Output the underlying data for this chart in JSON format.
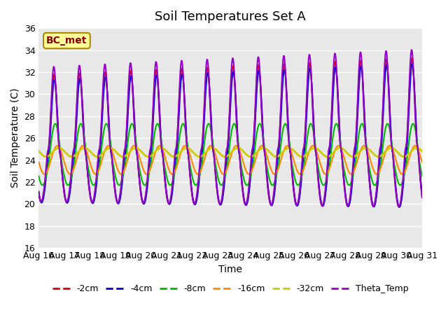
{
  "title": "Soil Temperatures Set A",
  "xlabel": "Time",
  "ylabel": "Soil Temperature (C)",
  "ylim": [
    16,
    36
  ],
  "yticks": [
    16,
    18,
    20,
    22,
    24,
    26,
    28,
    30,
    32,
    34,
    36
  ],
  "x_labels": [
    "Aug 16",
    "Aug 17",
    "Aug 18",
    "Aug 19",
    "Aug 20",
    "Aug 21",
    "Aug 22",
    "Aug 23",
    "Aug 24",
    "Aug 25",
    "Aug 26",
    "Aug 27",
    "Aug 28",
    "Aug 29",
    "Aug 30",
    "Aug 31"
  ],
  "annotation": "BC_met",
  "series": [
    {
      "label": "-2cm",
      "color": "#dd0000",
      "lw": 1.5
    },
    {
      "label": "-4cm",
      "color": "#0000cc",
      "lw": 1.5
    },
    {
      "label": "-8cm",
      "color": "#00bb00",
      "lw": 1.5
    },
    {
      "label": "-16cm",
      "color": "#ff8800",
      "lw": 1.5
    },
    {
      "label": "-32cm",
      "color": "#cccc00",
      "lw": 2.0
    },
    {
      "label": "Theta_Temp",
      "color": "#9900cc",
      "lw": 1.5
    }
  ],
  "bg_color": "#e8e8e8",
  "grid_color": "#ffffff",
  "title_fontsize": 13,
  "label_fontsize": 10,
  "tick_fontsize": 9
}
